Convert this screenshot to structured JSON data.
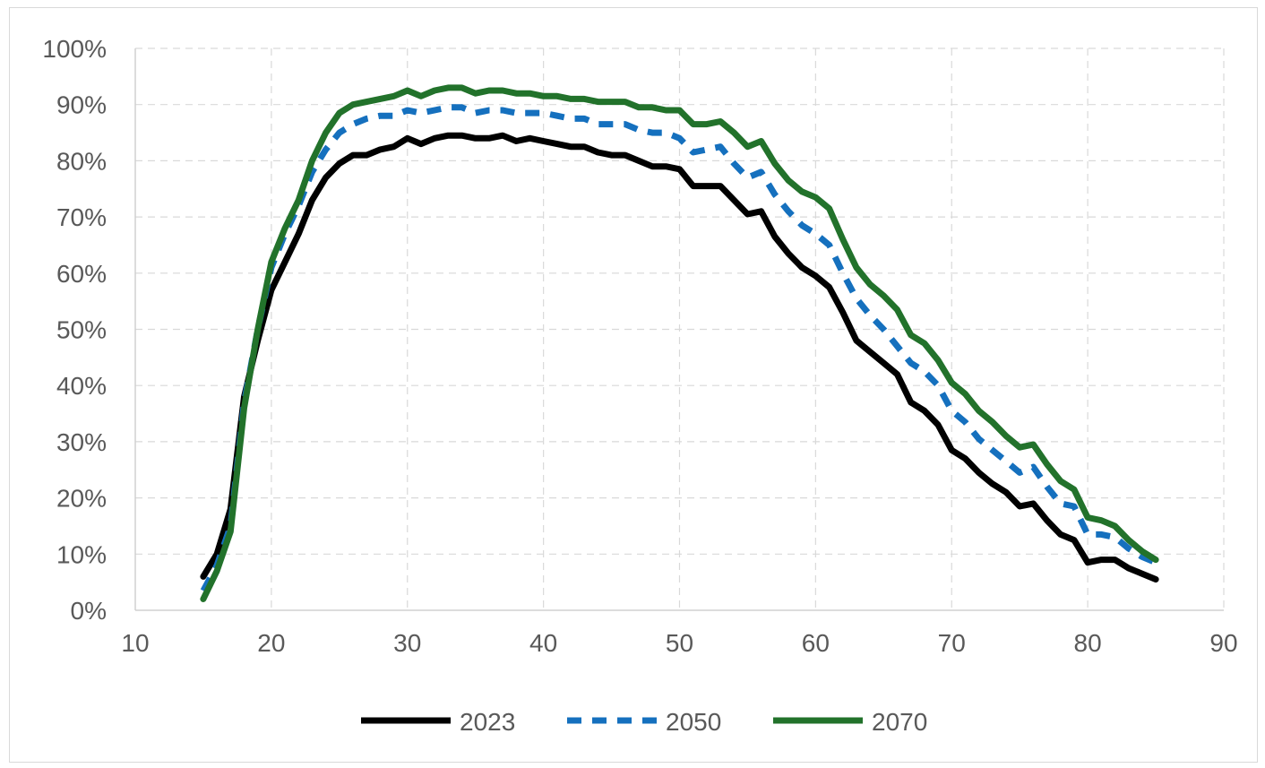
{
  "chart_data": {
    "type": "line",
    "xlim": [
      10,
      90
    ],
    "ylim": [
      0,
      100
    ],
    "x_ticks": [
      "10",
      "20",
      "30",
      "40",
      "50",
      "60",
      "70",
      "80",
      "90"
    ],
    "y_ticks": [
      "0%",
      "10%",
      "20%",
      "30%",
      "40%",
      "50%",
      "60%",
      "70%",
      "80%",
      "90%",
      "100%"
    ],
    "grid": "horizontal and vertical, dashed",
    "legend_position": "bottom",
    "x": [
      15,
      16,
      17,
      18,
      19,
      20,
      21,
      22,
      23,
      24,
      25,
      26,
      27,
      28,
      29,
      30,
      31,
      32,
      33,
      34,
      35,
      36,
      37,
      38,
      39,
      40,
      41,
      42,
      43,
      44,
      45,
      46,
      47,
      48,
      49,
      50,
      51,
      52,
      53,
      54,
      55,
      56,
      57,
      58,
      59,
      60,
      61,
      62,
      63,
      64,
      65,
      66,
      67,
      68,
      69,
      70,
      71,
      72,
      73,
      74,
      75,
      76,
      77,
      78,
      79,
      80,
      81,
      82,
      83,
      84,
      85
    ],
    "series": [
      {
        "name": "2023",
        "color": "#000000",
        "style": "solid",
        "values": [
          6,
          10,
          18,
          38,
          48,
          57,
          62,
          67,
          73,
          77,
          79.5,
          81,
          81,
          82,
          82.5,
          84,
          83,
          84,
          84.5,
          84.5,
          84,
          84,
          84.5,
          83.5,
          84,
          83.5,
          83,
          82.5,
          82.5,
          81.5,
          81,
          81,
          80,
          79,
          79,
          78.5,
          75.5,
          75.5,
          75.5,
          73,
          70.5,
          71,
          66.5,
          63.5,
          61,
          59.5,
          57.5,
          53,
          48,
          46,
          44,
          42,
          37,
          35.5,
          33,
          28.5,
          27,
          24.5,
          22.5,
          21,
          18.5,
          19,
          16,
          13.5,
          12.5,
          8.5,
          9,
          9,
          7.5,
          6.5,
          5.5
        ]
      },
      {
        "name": "2050",
        "color": "#1570be",
        "style": "dashed",
        "values": [
          3.5,
          8,
          15,
          37,
          50,
          61,
          67,
          72,
          78,
          82,
          85,
          86.5,
          87.5,
          88,
          88,
          89,
          88.5,
          89,
          89.5,
          89.5,
          88.5,
          89,
          89,
          88.5,
          88.5,
          88.5,
          88,
          87.5,
          87.5,
          86.5,
          86.5,
          86.5,
          85.5,
          85,
          85,
          84,
          81.5,
          82,
          82.5,
          79.5,
          77,
          78,
          74,
          71,
          68.5,
          67,
          65,
          60,
          55.5,
          52.5,
          50,
          47,
          44,
          42.5,
          40,
          35.5,
          33.5,
          30.5,
          28.5,
          26.5,
          24.5,
          25.5,
          22,
          19,
          18.5,
          13.5,
          13.5,
          13,
          11,
          9.5,
          8.5
        ]
      },
      {
        "name": "2070",
        "color": "#22722b",
        "style": "solid",
        "values": [
          2,
          7,
          14,
          36,
          50,
          62,
          68,
          73,
          80,
          85,
          88.5,
          90,
          90.5,
          91,
          91.5,
          92.5,
          91.5,
          92.5,
          93,
          93,
          92,
          92.5,
          92.5,
          92,
          92,
          91.5,
          91.5,
          91,
          91,
          90.5,
          90.5,
          90.5,
          89.5,
          89.5,
          89,
          89,
          86.5,
          86.5,
          87,
          85,
          82.5,
          83.5,
          79.5,
          76.5,
          74.5,
          73.5,
          71.5,
          66,
          61,
          58,
          56,
          53.5,
          49,
          47.5,
          44.5,
          40.5,
          38.5,
          35.5,
          33.5,
          31,
          29,
          29.5,
          26,
          23,
          21.5,
          16.5,
          16,
          15,
          12.5,
          10.5,
          9
        ]
      }
    ]
  }
}
